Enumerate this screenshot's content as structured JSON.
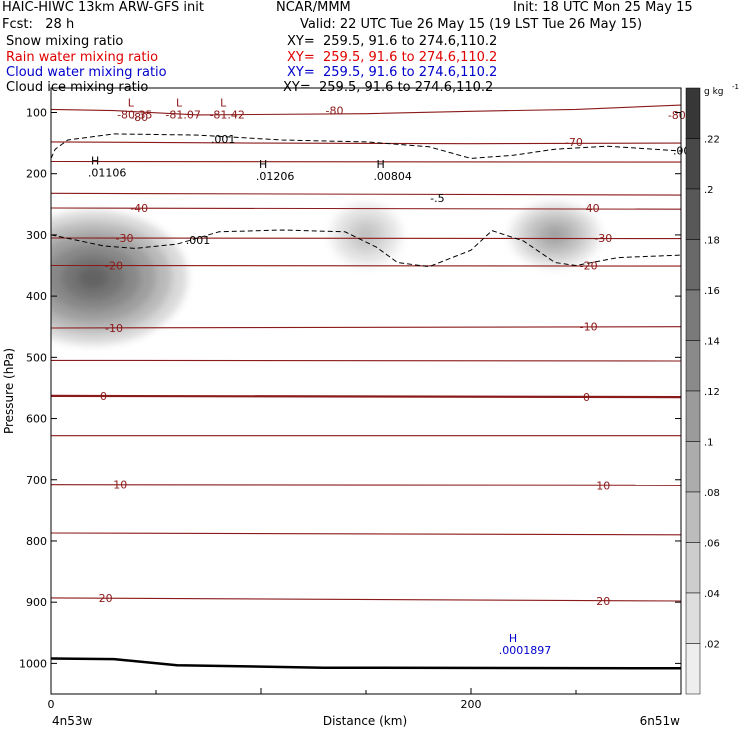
{
  "header": {
    "title_left": "HAIC-HIWC 13km ARW-GFS init",
    "title_center": "NCAR/MMM",
    "init": "Init: 18 UTC Mon 25 May 15",
    "fcst": "Fcst:   28 h",
    "valid": "Valid: 22 UTC Tue 26 May 15 (19 LST Tue 26 May 15)",
    "fields": [
      {
        "name": "Snow mixing ratio",
        "xy": "XY=  259.5, 91.6 to 274.6,110.2",
        "color": "#000000"
      },
      {
        "name": "Rain water mixing ratio",
        "xy": "XY=  259.5, 91.6 to 274.6,110.2",
        "color": "#e00000"
      },
      {
        "name": "Cloud water mixing ratio",
        "xy": "XY=  259.5, 91.6 to 274.6,110.2",
        "color": "#0000cc"
      },
      {
        "name": "Cloud ice mixing ratio",
        "xy": "XY=  259.5, 91.6 to 274.6,110.2",
        "color": "#000000"
      }
    ]
  },
  "chart_data": {
    "type": "heatmap",
    "xlabel": "Distance (km)",
    "ylabel": "Pressure (hPa)",
    "xlim": [
      0,
      300
    ],
    "ylim": [
      1050,
      60
    ],
    "x_ticks": [
      0,
      200
    ],
    "y_ticks": [
      100,
      200,
      300,
      400,
      500,
      600,
      700,
      800,
      900,
      1000
    ],
    "x_endpoints": {
      "left": "4n53w",
      "right": "6n51w"
    },
    "colorbar": {
      "unit": "g kg",
      "unit_exp": "-1",
      "ticks": [
        ".02",
        ".04",
        ".06",
        ".08",
        ".1",
        ".12",
        ".14",
        ".16",
        ".18",
        ".2",
        ".22"
      ],
      "ticks_value": [
        0.02,
        0.04,
        0.06,
        0.08,
        0.1,
        0.12,
        0.14,
        0.16,
        0.18,
        0.2,
        0.22
      ],
      "max": 0.24
    },
    "snow_blobs": [
      {
        "x": 20,
        "p": 370,
        "rx": 45,
        "rp": 110,
        "peak": 0.22
      },
      {
        "x": 150,
        "p": 300,
        "rx": 18,
        "rp": 55,
        "peak": 0.07
      },
      {
        "x": 240,
        "p": 300,
        "rx": 22,
        "rp": 55,
        "peak": 0.11
      }
    ],
    "temperature_contours": [
      {
        "label": "-80",
        "points": [
          [
            0,
            95
          ],
          [
            30,
            97
          ],
          [
            70,
            104
          ],
          [
            150,
            102
          ],
          [
            200,
            98
          ],
          [
            250,
            95
          ],
          [
            300,
            88
          ]
        ]
      },
      {
        "label": "-70",
        "points": [
          [
            0,
            148
          ],
          [
            100,
            150
          ],
          [
            200,
            151
          ],
          [
            300,
            150
          ]
        ]
      },
      {
        "label": "",
        "points": [
          [
            0,
            180
          ],
          [
            300,
            181
          ]
        ]
      },
      {
        "label": "",
        "points": [
          [
            0,
            232
          ],
          [
            300,
            235
          ]
        ]
      },
      {
        "label": "-40",
        "points": [
          [
            0,
            256
          ],
          [
            300,
            258
          ]
        ]
      },
      {
        "label": "-30",
        "points": [
          [
            0,
            305
          ],
          [
            300,
            306
          ]
        ]
      },
      {
        "label": "-20",
        "points": [
          [
            0,
            350
          ],
          [
            300,
            351
          ]
        ]
      },
      {
        "label": "-10",
        "points": [
          [
            0,
            452
          ],
          [
            300,
            450
          ]
        ]
      },
      {
        "label": "",
        "points": [
          [
            0,
            505
          ],
          [
            300,
            506
          ]
        ]
      },
      {
        "label": "0",
        "points": [
          [
            0,
            563
          ],
          [
            300,
            565
          ]
        ]
      },
      {
        "label": "",
        "points": [
          [
            0,
            628
          ],
          [
            300,
            628
          ]
        ]
      },
      {
        "label": "10",
        "points": [
          [
            0,
            708
          ],
          [
            300,
            709
          ]
        ]
      },
      {
        "label": "",
        "points": [
          [
            0,
            787
          ],
          [
            300,
            790
          ]
        ]
      },
      {
        "label": "20",
        "points": [
          [
            0,
            893
          ],
          [
            300,
            898
          ]
        ]
      }
    ],
    "contour_labels": [
      {
        "text": "-80",
        "x": 42,
        "p": 107
      },
      {
        "text": "-80",
        "x": 135,
        "p": 97
      },
      {
        "text": "-80",
        "x": 298,
        "p": 104
      },
      {
        "text": "-70",
        "x": 249,
        "p": 148
      },
      {
        "text": "-40",
        "x": 42,
        "p": 256
      },
      {
        "text": "-40",
        "x": 257,
        "p": 256
      },
      {
        "text": "-30",
        "x": 35,
        "p": 305
      },
      {
        "text": "-30",
        "x": 263,
        "p": 305
      },
      {
        "text": "-20",
        "x": 30,
        "p": 350
      },
      {
        "text": "-20",
        "x": 256,
        "p": 350
      },
      {
        "text": "-10",
        "x": 30,
        "p": 452
      },
      {
        "text": "-10",
        "x": 256,
        "p": 450
      },
      {
        "text": "0",
        "x": 25,
        "p": 563
      },
      {
        "text": "0",
        "x": 255,
        "p": 565
      },
      {
        "text": "10",
        "x": 33,
        "p": 708
      },
      {
        "text": "10",
        "x": 263,
        "p": 709
      },
      {
        "text": "20",
        "x": 26,
        "p": 893
      },
      {
        "text": "20",
        "x": 263,
        "p": 898
      }
    ],
    "dashed_contours": [
      {
        "label": ".001",
        "points": [
          [
            0,
            175
          ],
          [
            2,
            160
          ],
          [
            8,
            145
          ],
          [
            30,
            135
          ],
          [
            70,
            137
          ],
          [
            110,
            145
          ],
          [
            150,
            148
          ],
          [
            180,
            156
          ],
          [
            200,
            175
          ],
          [
            220,
            170
          ],
          [
            240,
            160
          ],
          [
            265,
            155
          ],
          [
            300,
            163
          ]
        ],
        "label_pos": [
          [
            82,
            143
          ],
          [
            302,
            162
          ]
        ]
      },
      {
        "label": ".001",
        "points": [
          [
            0,
            300
          ],
          [
            10,
            307
          ],
          [
            25,
            318
          ],
          [
            40,
            322
          ],
          [
            60,
            315
          ],
          [
            80,
            295
          ],
          [
            110,
            292
          ],
          [
            140,
            295
          ],
          [
            155,
            320
          ],
          [
            165,
            345
          ],
          [
            180,
            352
          ],
          [
            200,
            325
          ],
          [
            210,
            293
          ],
          [
            225,
            310
          ],
          [
            240,
            345
          ],
          [
            250,
            350
          ],
          [
            270,
            337
          ],
          [
            300,
            333
          ]
        ],
        "label_pos": [
          [
            70,
            308
          ]
        ]
      }
    ],
    "extrema": [
      {
        "type": "L",
        "label": "-80.35",
        "x": 38,
        "p": 92
      },
      {
        "type": "L",
        "label": "-81.42",
        "x": 82,
        "p": 92
      },
      {
        "type": "L",
        "label": "-81.07",
        "x": 61,
        "p": 92
      },
      {
        "type": "H",
        "label": ".01106",
        "x": 21,
        "p": 187
      },
      {
        "type": "H",
        "label": ".01206",
        "x": 101,
        "p": 192
      },
      {
        "type": "H",
        "label": ".00804",
        "x": 157,
        "p": 192
      },
      {
        "type": "H",
        "label": ".0001897",
        "x": 220,
        "p": 967
      }
    ],
    "misc_labels": [
      {
        "text": "-.5",
        "x": 184,
        "p": 240
      }
    ],
    "ground": [
      [
        0,
        992
      ],
      [
        30,
        993
      ],
      [
        60,
        1003
      ],
      [
        130,
        1007
      ],
      [
        300,
        1008
      ]
    ]
  }
}
